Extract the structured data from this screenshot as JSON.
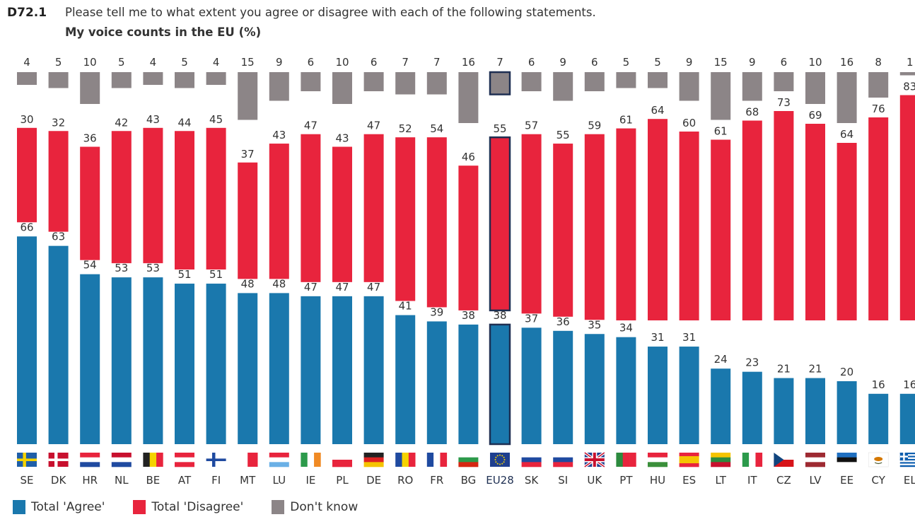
{
  "header": {
    "code": "D72.1",
    "question": "Please tell me to what extent you agree or disagree with each of the following statements.",
    "title": "My voice counts in the EU",
    "unit": "(%)"
  },
  "colors": {
    "agree": "#1a78ad",
    "disagree": "#e8243d",
    "dontknow": "#8c8587",
    "highlight_border": "#1e2f52",
    "label": "#333333"
  },
  "legend": [
    {
      "key": "agree",
      "label": "Total 'Agree'"
    },
    {
      "key": "disagree",
      "label": "Total 'Disagree'"
    },
    {
      "key": "dontknow",
      "label": "Don't know"
    }
  ],
  "chart_data": {
    "type": "bar",
    "stacked_layout": "three-tier columns per country",
    "highlight": "EU28",
    "categories": [
      "SE",
      "DK",
      "HR",
      "NL",
      "BE",
      "AT",
      "FI",
      "MT",
      "LU",
      "IE",
      "PL",
      "DE",
      "RO",
      "FR",
      "BG",
      "EU28",
      "SK",
      "SI",
      "UK",
      "PT",
      "HU",
      "ES",
      "LT",
      "IT",
      "CZ",
      "LV",
      "EE",
      "CY",
      "EL"
    ],
    "series": [
      {
        "name": "Total 'Agree'",
        "key": "agree",
        "values": [
          66,
          63,
          54,
          53,
          53,
          51,
          51,
          48,
          48,
          47,
          47,
          47,
          41,
          39,
          38,
          38,
          37,
          36,
          35,
          34,
          31,
          31,
          24,
          23,
          21,
          21,
          20,
          16,
          16
        ]
      },
      {
        "name": "Total 'Disagree'",
        "key": "disagree",
        "values": [
          30,
          32,
          36,
          42,
          43,
          44,
          45,
          37,
          43,
          47,
          43,
          47,
          52,
          54,
          46,
          55,
          57,
          55,
          59,
          61,
          64,
          60,
          61,
          68,
          73,
          69,
          64,
          76,
          83
        ]
      },
      {
        "name": "Don't know",
        "key": "dontknow",
        "values": [
          4,
          5,
          10,
          5,
          4,
          5,
          4,
          15,
          9,
          6,
          10,
          6,
          7,
          7,
          16,
          7,
          6,
          9,
          6,
          5,
          5,
          9,
          15,
          9,
          6,
          10,
          16,
          8,
          1
        ]
      }
    ],
    "flags": {
      "SE": {
        "type": "nordic",
        "bg": "#1f5fa8",
        "cross": "#f5d300"
      },
      "DK": {
        "type": "nordic",
        "bg": "#c8102e",
        "cross": "#ffffff"
      },
      "FI": {
        "type": "nordic",
        "bg": "#ffffff",
        "cross": "#1f4aa0"
      },
      "HR": {
        "type": "hstripes",
        "colors": [
          "#e8243d",
          "#ffffff",
          "#1f4aa0"
        ]
      },
      "NL": {
        "type": "hstripes",
        "colors": [
          "#c8102e",
          "#ffffff",
          "#1f4aa0"
        ]
      },
      "AT": {
        "type": "hstripes",
        "colors": [
          "#e8243d",
          "#ffffff",
          "#e8243d"
        ]
      },
      "LU": {
        "type": "hstripes",
        "colors": [
          "#e8243d",
          "#ffffff",
          "#6ab0e6"
        ]
      },
      "DE": {
        "type": "hstripes",
        "colors": [
          "#222222",
          "#dd2222",
          "#f5c400"
        ]
      },
      "BG": {
        "type": "hstripes",
        "colors": [
          "#ffffff",
          "#2c9a4b",
          "#d62612"
        ]
      },
      "SI": {
        "type": "hstripes",
        "colors": [
          "#ffffff",
          "#1f4aa0",
          "#e8243d"
        ]
      },
      "SK": {
        "type": "hstripes",
        "colors": [
          "#ffffff",
          "#1f4aa0",
          "#e8243d"
        ]
      },
      "HU": {
        "type": "hstripes",
        "colors": [
          "#e8243d",
          "#ffffff",
          "#3a8f3a"
        ]
      },
      "LT": {
        "type": "hstripes",
        "colors": [
          "#f5c400",
          "#2c8a3e",
          "#c8102e"
        ]
      },
      "EE": {
        "type": "hstripes",
        "colors": [
          "#1f6fc0",
          "#111111",
          "#ffffff"
        ]
      },
      "LV": {
        "type": "hstripes",
        "colors": [
          "#9e2a32",
          "#ffffff",
          "#9e2a32"
        ]
      },
      "PL": {
        "type": "hstripes",
        "colors": [
          "#ffffff",
          "#e8243d"
        ]
      },
      "ES": {
        "type": "hstripes",
        "colors": [
          "#e8243d",
          "#f5c400",
          "#f5c400",
          "#e8243d"
        ]
      },
      "BE": {
        "type": "vstripes",
        "colors": [
          "#222222",
          "#f5d300",
          "#e8243d"
        ]
      },
      "IE": {
        "type": "vstripes",
        "colors": [
          "#2c9a4b",
          "#ffffff",
          "#f08a24"
        ]
      },
      "RO": {
        "type": "vstripes",
        "colors": [
          "#1f4aa0",
          "#f5d300",
          "#e8243d"
        ]
      },
      "FR": {
        "type": "vstripes",
        "colors": [
          "#1f4aa0",
          "#ffffff",
          "#e8243d"
        ]
      },
      "IT": {
        "type": "vstripes",
        "colors": [
          "#2c9a4b",
          "#ffffff",
          "#e8243d"
        ]
      },
      "MT": {
        "type": "vstripes",
        "colors": [
          "#ffffff",
          "#e8243d"
        ]
      },
      "PT": {
        "type": "vstripes",
        "colors": [
          "#2c8a3e",
          "#e8243d",
          "#e8243d"
        ]
      },
      "CZ": {
        "type": "cz"
      },
      "UK": {
        "type": "uk"
      },
      "EU28": {
        "type": "eu"
      },
      "CY": {
        "type": "cy"
      },
      "EL": {
        "type": "el"
      }
    }
  }
}
